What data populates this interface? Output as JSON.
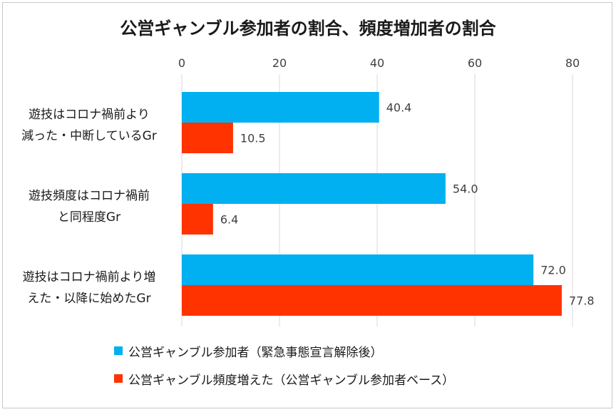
{
  "chart_data": {
    "type": "bar",
    "orientation": "horizontal",
    "title": "公営ギャンブル参加者の割合、頻度増加者の割合",
    "categories": [
      [
        "遊技はコロナ禍前より",
        "減った・中断しているGr"
      ],
      [
        "遊技頻度はコロナ禍前",
        "と同程度Gr"
      ],
      [
        "遊技はコロナ禍前より増",
        "えた・以降に始めたGr"
      ]
    ],
    "series": [
      {
        "name": "公営ギャンブル参加者（緊急事態宣言解除後）",
        "color": "#00b0f0",
        "values": [
          40.4,
          54.0,
          72.0
        ]
      },
      {
        "name": "公営ギャンブル頻度増えた（公営ギャンブル参加者ベース）",
        "color": "#ff3300",
        "values": [
          10.5,
          6.4,
          77.8
        ]
      }
    ],
    "xlim": [
      0,
      80
    ],
    "ticks": [
      0,
      20,
      40,
      60,
      80
    ],
    "value_labels": [
      [
        "40.4",
        "54.0",
        "72.0"
      ],
      [
        "10.5",
        "6.4",
        "77.8"
      ]
    ],
    "grid": true,
    "axis_position": "top",
    "legend_position": "bottom"
  }
}
